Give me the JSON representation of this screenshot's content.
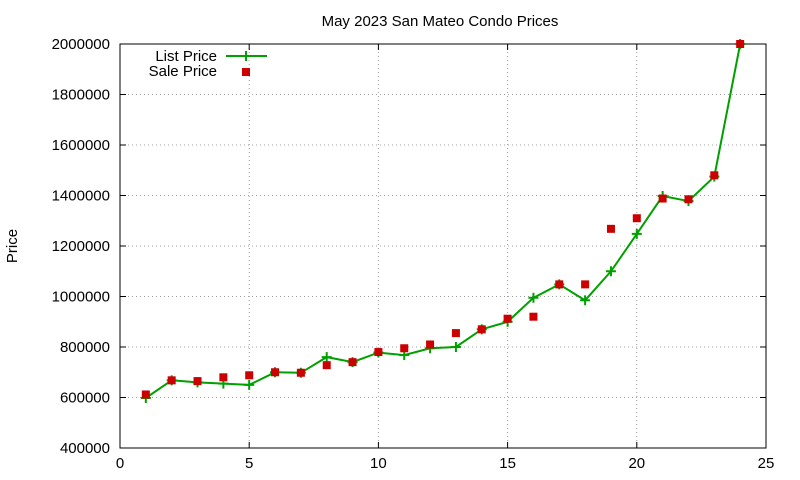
{
  "chart_data": {
    "type": "line",
    "title": "May 2023 San Mateo Condo Prices",
    "xlabel": "",
    "ylabel": "Price",
    "xlim": [
      0,
      25
    ],
    "ylim": [
      400000,
      2000000
    ],
    "x_ticks": [
      "0",
      "5",
      "10",
      "15",
      "20",
      "25"
    ],
    "y_ticks": [
      "400000",
      "600000",
      "800000",
      "1000000",
      "1200000",
      "1400000",
      "1600000",
      "1800000",
      "2000000"
    ],
    "grid": true,
    "legend_position": "top-left",
    "series": [
      {
        "name": "List Price",
        "style": "line+cross",
        "color": "#00a000",
        "x": [
          1,
          2,
          3,
          4,
          5,
          6,
          7,
          8,
          9,
          10,
          11,
          12,
          13,
          14,
          15,
          16,
          17,
          18,
          19,
          20,
          21,
          22,
          23,
          24
        ],
        "y": [
          598000,
          668000,
          660000,
          655000,
          650000,
          700000,
          698000,
          760000,
          740000,
          778000,
          768000,
          795000,
          800000,
          870000,
          900000,
          995000,
          1048000,
          985000,
          1100000,
          1248000,
          1398000,
          1378000,
          1475000,
          2000000
        ]
      },
      {
        "name": "Sale Price",
        "style": "points",
        "color": "#cc0000",
        "x": [
          1,
          2,
          3,
          4,
          5,
          6,
          7,
          8,
          9,
          10,
          11,
          12,
          13,
          14,
          15,
          16,
          17,
          18,
          19,
          20,
          21,
          22,
          23,
          24
        ],
        "y": [
          612000,
          668000,
          665000,
          680000,
          688000,
          700000,
          698000,
          728000,
          740000,
          780000,
          795000,
          810000,
          855000,
          870000,
          912000,
          920000,
          1048000,
          1048000,
          1268000,
          1310000,
          1388000,
          1385000,
          1480000,
          2000000
        ]
      }
    ]
  }
}
